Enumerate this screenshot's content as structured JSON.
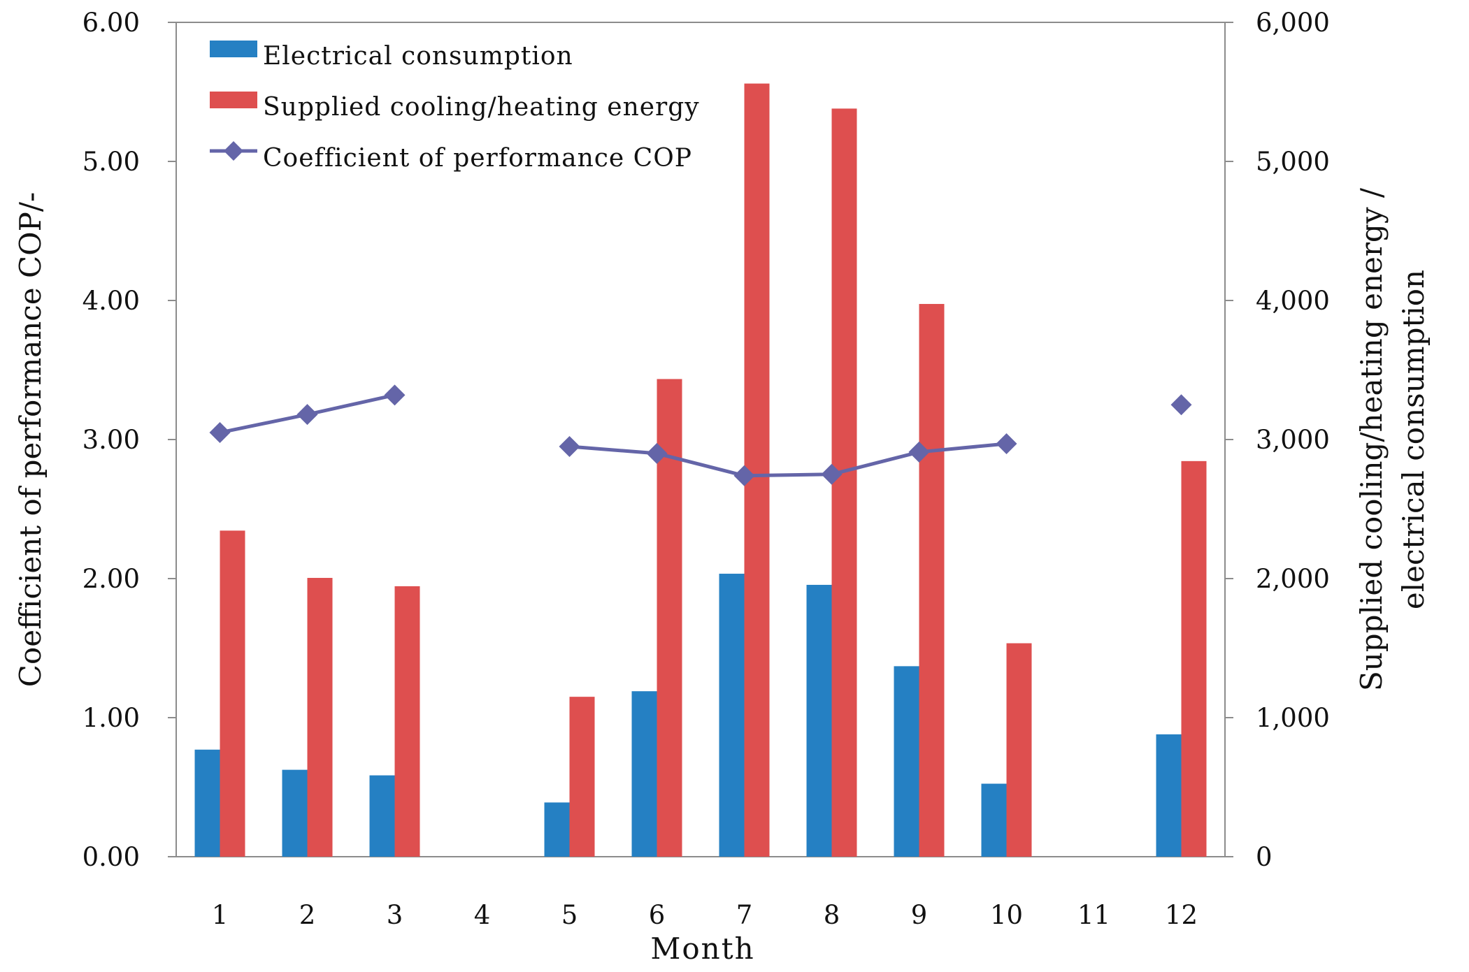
{
  "chart_data": {
    "type": "bar",
    "title": "",
    "xlabel": "Month",
    "ylabel_left": "Coefficient of performance COP/-",
    "ylabel_right": [
      "Supplied cooling/heating energy /",
      "electrical consumption"
    ],
    "categories": [
      "1",
      "2",
      "3",
      "4",
      "5",
      "6",
      "7",
      "8",
      "9",
      "10",
      "11",
      "12"
    ],
    "ylim_left": [
      0,
      6
    ],
    "ylim_right": [
      0,
      6000
    ],
    "left_ticks": [
      "0.00",
      "1.00",
      "2.00",
      "3.00",
      "4.00",
      "5.00",
      "6.00"
    ],
    "right_ticks": [
      "0",
      "1,000",
      "2,000",
      "3,000",
      "4,000",
      "5,000",
      "6,000"
    ],
    "grid": false,
    "legend_position": "top-left",
    "series": [
      {
        "name": "Electrical consumption",
        "kind": "bar",
        "axis": "right",
        "color": "#2580c3",
        "values": [
          770,
          625,
          585,
          null,
          390,
          1190,
          2035,
          1955,
          1370,
          525,
          null,
          880
        ]
      },
      {
        "name": "Supplied cooling/heating energy",
        "kind": "bar",
        "axis": "right",
        "color": "#de4f4f",
        "values": [
          2345,
          2005,
          1945,
          null,
          1150,
          3435,
          5560,
          5380,
          3975,
          1535,
          null,
          2845
        ]
      },
      {
        "name": "Coefficient of performance COP",
        "kind": "line",
        "axis": "left",
        "color": "#6465a8",
        "values": [
          3.05,
          3.18,
          3.32,
          null,
          2.95,
          2.9,
          2.74,
          2.75,
          2.91,
          2.97,
          null,
          3.25
        ]
      }
    ]
  }
}
